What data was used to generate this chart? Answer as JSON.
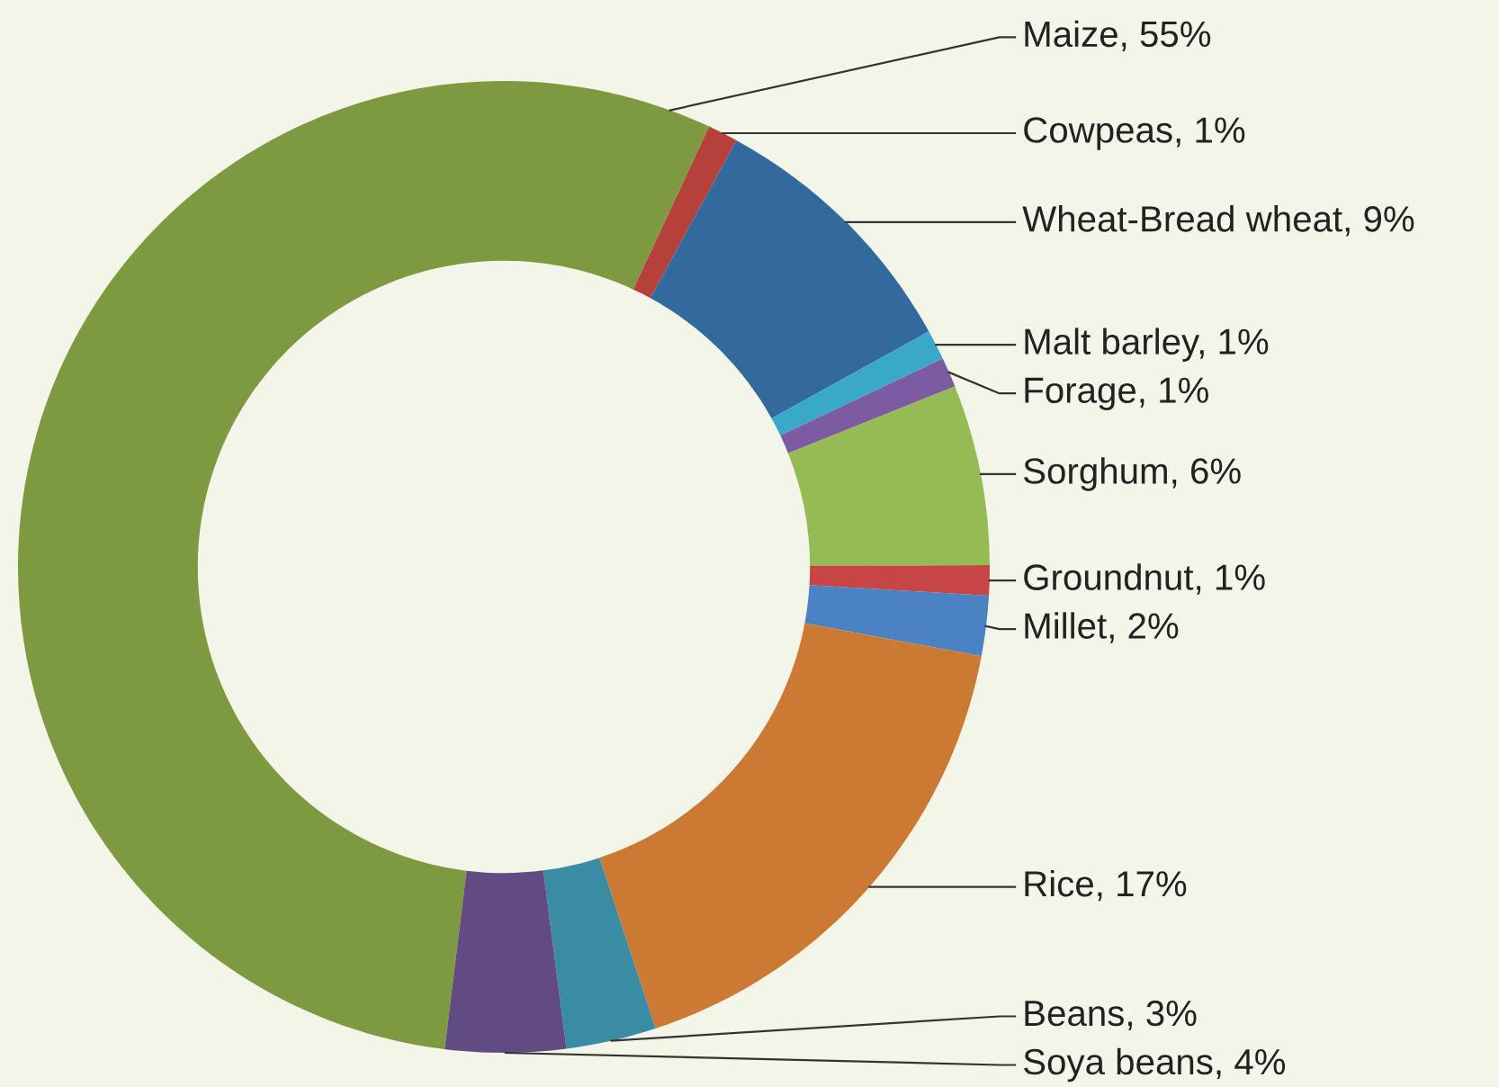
{
  "chart_data": {
    "type": "donut",
    "categories": [
      "Maize, 55%",
      "Cowpeas, 1%",
      "Wheat-Bread wheat, 9%",
      "Malt barley, 1%",
      "Forage, 1%",
      "Sorghum, 6%",
      "Groundnut, 1%",
      "Millet, 2%",
      "Rice, 17%",
      "Beans, 3%",
      "Soya beans, 4%"
    ],
    "values": [
      55,
      1,
      9,
      1,
      1,
      6,
      1,
      2,
      17,
      3,
      4
    ],
    "colors": [
      "#7d9a40",
      "#b5413a",
      "#336a9e",
      "#3aa9c9",
      "#7c5ba3",
      "#95bb55",
      "#c84545",
      "#4a82c4",
      "#cc7a33",
      "#3a8ca5",
      "#614b82"
    ],
    "legend": false
  }
}
